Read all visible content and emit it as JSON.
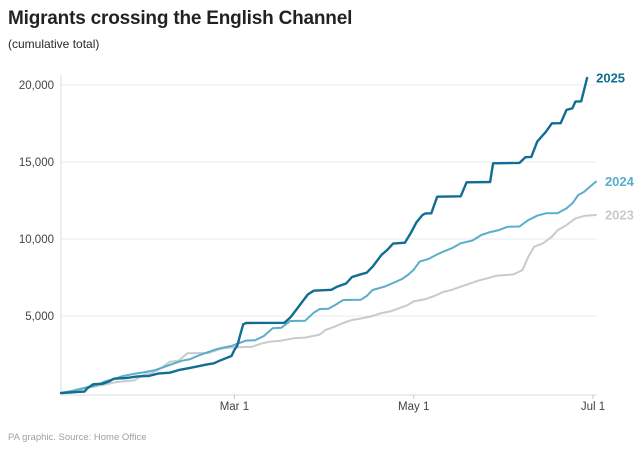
{
  "header": {
    "title": "Migrants crossing the English Channel",
    "subtitle": "(cumulative total)"
  },
  "footer": {
    "credit": "PA graphic. Source: Home Office"
  },
  "colors": {
    "background": "#ffffff",
    "title_text": "#1f2326",
    "subtitle_text": "#26292c",
    "footer_text": "#9da1a4",
    "grid": "#e9ebec",
    "axis": "#d8dbdc",
    "tick": "#c4c8ca",
    "axis_label_text": "#404548",
    "series_2025": "#0f6e91",
    "series_2024": "#5aadcb",
    "series_2023": "#c7cbcd"
  },
  "chart_data": {
    "type": "line",
    "title": "Migrants crossing the English Channel",
    "subtitle": "(cumulative total)",
    "xlabel": "",
    "ylabel": "",
    "x_unit": "days since Jan 1",
    "xlim": [
      0,
      182
    ],
    "ylim": [
      0,
      20500
    ],
    "grid": "horizontal",
    "legend_position": "right-end-labels",
    "y_ticks": [
      {
        "value": 5000,
        "label": "5,000"
      },
      {
        "value": 10000,
        "label": "10,000"
      },
      {
        "value": 15000,
        "label": "15,000"
      },
      {
        "value": 20000,
        "label": "20,000"
      }
    ],
    "x_ticks": [
      {
        "day": 59,
        "label": "Mar 1"
      },
      {
        "day": 120,
        "label": "May 1"
      },
      {
        "day": 181,
        "label": "Jul 1"
      }
    ],
    "series": [
      {
        "name": "2025",
        "color": "#0f6e91",
        "stroke_width": 2.4,
        "end_value": 20455,
        "points": [
          [
            0,
            0
          ],
          [
            3,
            30
          ],
          [
            5,
            60
          ],
          [
            8,
            90
          ],
          [
            9,
            320
          ],
          [
            11,
            570
          ],
          [
            14,
            600
          ],
          [
            16,
            720
          ],
          [
            18,
            930
          ],
          [
            22,
            970
          ],
          [
            26,
            1080
          ],
          [
            30,
            1110
          ],
          [
            33,
            1260
          ],
          [
            37,
            1320
          ],
          [
            40,
            1490
          ],
          [
            43,
            1600
          ],
          [
            46,
            1710
          ],
          [
            49,
            1830
          ],
          [
            52,
            1930
          ],
          [
            54,
            2100
          ],
          [
            56,
            2253
          ],
          [
            58,
            2400
          ],
          [
            59,
            2800
          ],
          [
            60,
            3100
          ],
          [
            61,
            3800
          ],
          [
            62,
            4460
          ],
          [
            63,
            4545
          ],
          [
            76,
            4560
          ],
          [
            78,
            4900
          ],
          [
            80,
            5390
          ],
          [
            82,
            5900
          ],
          [
            84,
            6400
          ],
          [
            86,
            6642
          ],
          [
            92,
            6700
          ],
          [
            94,
            6910
          ],
          [
            97,
            7110
          ],
          [
            99,
            7530
          ],
          [
            102,
            7710
          ],
          [
            104,
            7810
          ],
          [
            106,
            8200
          ],
          [
            109,
            8960
          ],
          [
            111,
            9290
          ],
          [
            113,
            9700
          ],
          [
            117,
            9760
          ],
          [
            119,
            10390
          ],
          [
            121,
            11100
          ],
          [
            123,
            11560
          ],
          [
            124,
            11660
          ],
          [
            126,
            11670
          ],
          [
            128,
            12750
          ],
          [
            136,
            12770
          ],
          [
            138,
            13680
          ],
          [
            146,
            13700
          ],
          [
            147,
            14915
          ],
          [
            156,
            14940
          ],
          [
            158,
            15310
          ],
          [
            160,
            15330
          ],
          [
            162,
            16320
          ],
          [
            163,
            16540
          ],
          [
            165,
            16970
          ],
          [
            167,
            17510
          ],
          [
            170,
            17520
          ],
          [
            172,
            18380
          ],
          [
            174,
            18490
          ],
          [
            175,
            18920
          ],
          [
            177,
            18940
          ],
          [
            179,
            20455
          ]
        ]
      },
      {
        "name": "2024",
        "color": "#5aadcb",
        "stroke_width": 2,
        "end_value": 13725,
        "points": [
          [
            0,
            0
          ],
          [
            4,
            150
          ],
          [
            8,
            330
          ],
          [
            12,
            500
          ],
          [
            15,
            750
          ],
          [
            18,
            900
          ],
          [
            21,
            1100
          ],
          [
            25,
            1250
          ],
          [
            28,
            1335
          ],
          [
            32,
            1480
          ],
          [
            35,
            1690
          ],
          [
            38,
            1890
          ],
          [
            41,
            2090
          ],
          [
            44,
            2200
          ],
          [
            47,
            2450
          ],
          [
            50,
            2650
          ],
          [
            53,
            2850
          ],
          [
            56,
            2983
          ],
          [
            58,
            3050
          ],
          [
            60,
            3200
          ],
          [
            63,
            3400
          ],
          [
            66,
            3420
          ],
          [
            69,
            3700
          ],
          [
            72,
            4200
          ],
          [
            75,
            4240
          ],
          [
            78,
            4675
          ],
          [
            83,
            4690
          ],
          [
            86,
            5214
          ],
          [
            88,
            5455
          ],
          [
            91,
            5470
          ],
          [
            94,
            5800
          ],
          [
            96,
            6040
          ],
          [
            102,
            6050
          ],
          [
            104,
            6300
          ],
          [
            106,
            6690
          ],
          [
            110,
            6900
          ],
          [
            113,
            7140
          ],
          [
            116,
            7400
          ],
          [
            118,
            7660
          ],
          [
            120,
            8000
          ],
          [
            122,
            8530
          ],
          [
            125,
            8700
          ],
          [
            128,
            9000
          ],
          [
            130,
            9175
          ],
          [
            133,
            9400
          ],
          [
            136,
            9720
          ],
          [
            140,
            9900
          ],
          [
            143,
            10260
          ],
          [
            146,
            10450
          ],
          [
            149,
            10580
          ],
          [
            152,
            10800
          ],
          [
            156,
            10810
          ],
          [
            159,
            11230
          ],
          [
            162,
            11510
          ],
          [
            165,
            11670
          ],
          [
            169,
            11680
          ],
          [
            172,
            11990
          ],
          [
            174,
            12320
          ],
          [
            176,
            12860
          ],
          [
            178,
            13070
          ],
          [
            180,
            13400
          ],
          [
            182,
            13725
          ]
        ]
      },
      {
        "name": "2023",
        "color": "#c7cbcd",
        "stroke_width": 2,
        "end_value": 11560,
        "points": [
          [
            0,
            0
          ],
          [
            4,
            100
          ],
          [
            8,
            280
          ],
          [
            12,
            450
          ],
          [
            15,
            550
          ],
          [
            18,
            680
          ],
          [
            21,
            750
          ],
          [
            25,
            820
          ],
          [
            28,
            1180
          ],
          [
            31,
            1300
          ],
          [
            34,
            1600
          ],
          [
            37,
            2030
          ],
          [
            40,
            2100
          ],
          [
            43,
            2580
          ],
          [
            50,
            2600
          ],
          [
            55,
            2900
          ],
          [
            58,
            2953
          ],
          [
            65,
            3000
          ],
          [
            68,
            3200
          ],
          [
            71,
            3331
          ],
          [
            75,
            3400
          ],
          [
            79,
            3550
          ],
          [
            83,
            3600
          ],
          [
            88,
            3793
          ],
          [
            90,
            4100
          ],
          [
            93,
            4300
          ],
          [
            96,
            4545
          ],
          [
            99,
            4740
          ],
          [
            103,
            4870
          ],
          [
            106,
            5000
          ],
          [
            109,
            5190
          ],
          [
            112,
            5300
          ],
          [
            115,
            5500
          ],
          [
            118,
            5714
          ],
          [
            120,
            5946
          ],
          [
            124,
            6100
          ],
          [
            127,
            6300
          ],
          [
            130,
            6560
          ],
          [
            133,
            6700
          ],
          [
            136,
            6900
          ],
          [
            139,
            7100
          ],
          [
            142,
            7300
          ],
          [
            145,
            7450
          ],
          [
            148,
            7610
          ],
          [
            154,
            7700
          ],
          [
            157,
            7990
          ],
          [
            159,
            8850
          ],
          [
            161,
            9500
          ],
          [
            164,
            9720
          ],
          [
            167,
            10150
          ],
          [
            169,
            10580
          ],
          [
            172,
            10900
          ],
          [
            175,
            11340
          ],
          [
            178,
            11500
          ],
          [
            182,
            11560
          ]
        ]
      }
    ]
  }
}
